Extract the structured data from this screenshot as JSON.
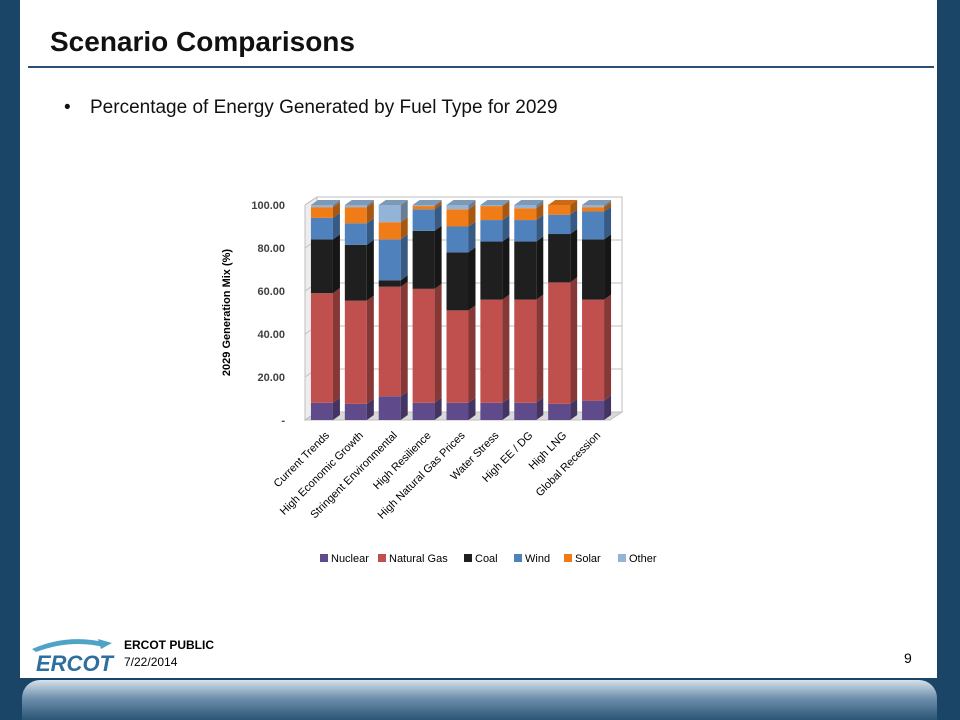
{
  "slide": {
    "title": "Scenario Comparisons",
    "bullet_marker": "•",
    "bullet": "Percentage of Energy Generated by Fuel Type for 2029",
    "footer_label": "ERCOT PUBLIC",
    "footer_date": "7/22/2014",
    "page_number": "9",
    "logo_text": "ERCOT"
  },
  "chart_data": {
    "type": "bar",
    "stacked": true,
    "ylabel": "2029 Generation Mix (%)",
    "ylim": [
      0,
      100
    ],
    "yticks": [
      "-",
      "20.00",
      "40.00",
      "60.00",
      "80.00",
      "100.00"
    ],
    "grid": true,
    "legend_position": "bottom",
    "categories": [
      "Current Trends",
      "High Economic Growth",
      "Stringent Environmental",
      "High Resilience",
      "High Natural Gas Prices",
      "Water Stress",
      "High EE / DG",
      "High LNG",
      "Global Recession"
    ],
    "series": [
      {
        "name": "Nuclear",
        "color": "#5f4a8b",
        "values": [
          8,
          7.5,
          11,
          8,
          8,
          8,
          8,
          7.5,
          9
        ]
      },
      {
        "name": "Natural Gas",
        "color": "#c0504d",
        "values": [
          51,
          48,
          51,
          53,
          43,
          48,
          48,
          56.5,
          47
        ]
      },
      {
        "name": "Coal",
        "color": "#1f1f1f",
        "values": [
          25,
          26,
          3,
          27,
          27,
          27,
          27,
          22.5,
          28
        ]
      },
      {
        "name": "Wind",
        "color": "#4f81bd",
        "values": [
          10,
          10,
          19,
          10,
          12,
          10,
          10,
          9,
          13
        ]
      },
      {
        "name": "Solar",
        "color": "#f07c17",
        "values": [
          5,
          7.5,
          8,
          1.5,
          8,
          6.5,
          5.5,
          4.5,
          2
        ]
      },
      {
        "name": "Other",
        "color": "#93b4d6",
        "values": [
          1,
          1,
          8,
          0.5,
          2,
          0.5,
          1.5,
          0,
          1
        ]
      }
    ]
  }
}
